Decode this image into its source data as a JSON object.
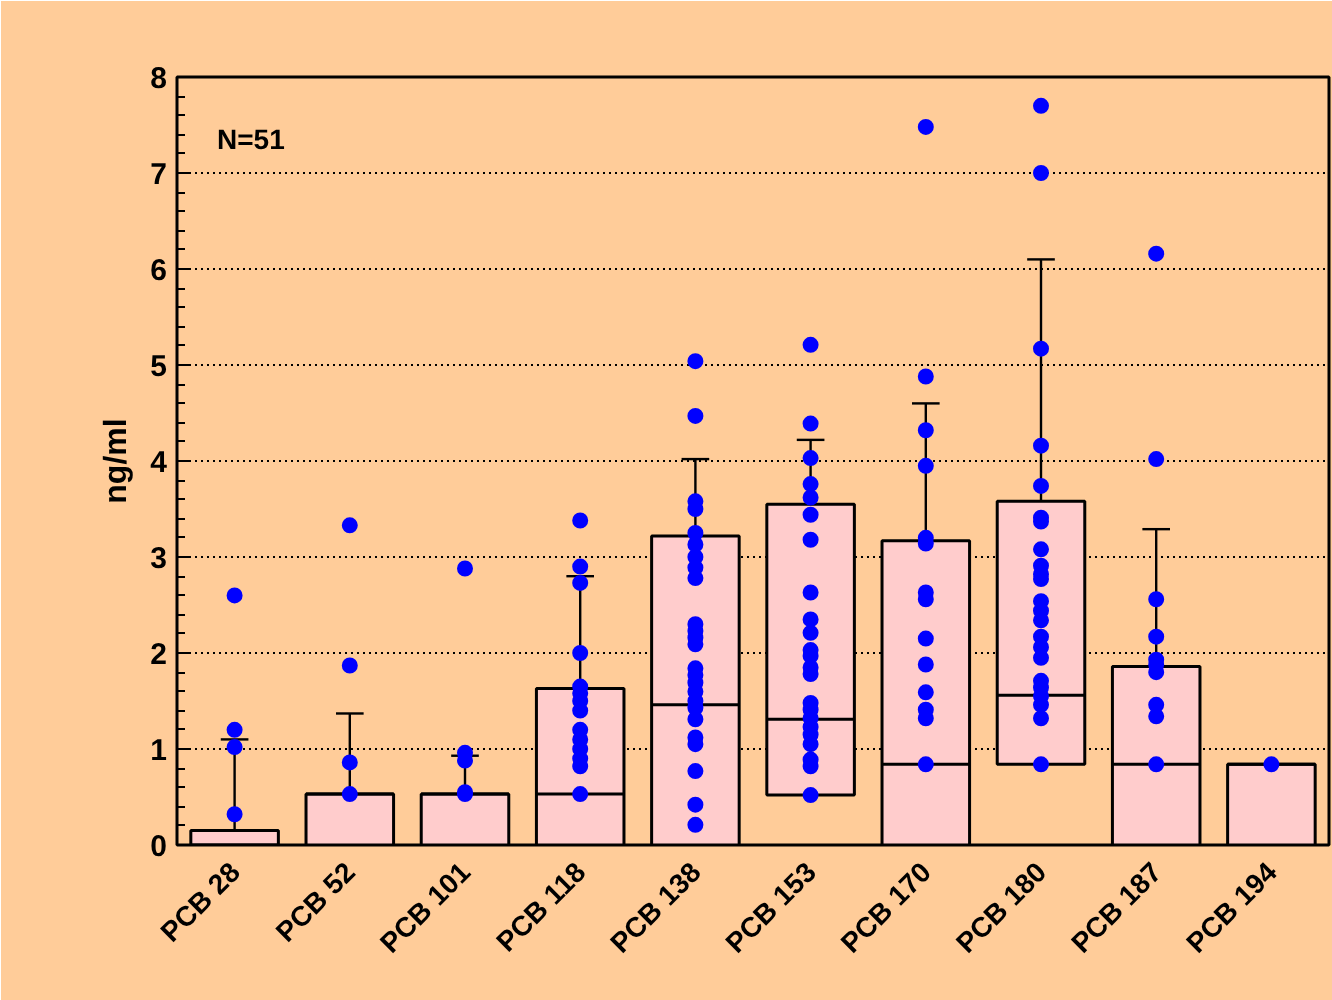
{
  "chart_data": {
    "type": "box",
    "categories": [
      "PCB 28",
      "PCB 52",
      "PCB 101",
      "PCB 118",
      "PCB 138",
      "PCB 153",
      "PCB 170",
      "PCB 180",
      "PCB 187",
      "PCB 194"
    ],
    "ylabel": "ng/ml",
    "annotations": [
      "N=51"
    ],
    "ylim": [
      0,
      8
    ],
    "yticks": [
      0,
      1,
      2,
      3,
      4,
      5,
      6,
      7,
      8
    ],
    "grid": "y",
    "series": [
      {
        "color": "#ffcccc",
        "boxes": [
          {
            "low": 0,
            "q1": 0,
            "median": 0,
            "q3": 0.15,
            "high": 1.1
          },
          {
            "low": 0,
            "q1": 0,
            "median": 0.53,
            "q3": 0.53,
            "high": 1.37
          },
          {
            "low": 0,
            "q1": 0,
            "median": 0.53,
            "q3": 0.53,
            "high": 0.93
          },
          {
            "low": 0,
            "q1": 0,
            "median": 0.53,
            "q3": 1.63,
            "high": 2.8
          },
          {
            "low": 0,
            "q1": 0,
            "median": 1.46,
            "q3": 3.22,
            "high": 4.02
          },
          {
            "low": 0.52,
            "q1": 0.52,
            "median": 1.31,
            "q3": 3.55,
            "high": 4.22
          },
          {
            "low": 0,
            "q1": 0,
            "median": 0.84,
            "q3": 3.17,
            "high": 4.6
          },
          {
            "low": 0.84,
            "q1": 0.84,
            "median": 1.56,
            "q3": 3.58,
            "high": 6.1
          },
          {
            "low": 0,
            "q1": 0,
            "median": 0.84,
            "q3": 1.86,
            "high": 3.29
          },
          {
            "low": 0,
            "q1": 0,
            "median": 0.84,
            "q3": 0.84,
            "high": 0.84
          }
        ]
      },
      {
        "type": "scatter",
        "color": "#0000ff",
        "marker": "circle",
        "x": [
          "PCB 28",
          "PCB 28",
          "PCB 28",
          "PCB 28",
          "PCB 52",
          "PCB 52",
          "PCB 52",
          "PCB 52",
          "PCB 101",
          "PCB 101",
          "PCB 101",
          "PCB 101",
          "PCB 101",
          "PCB 118",
          "PCB 118",
          "PCB 118",
          "PCB 118",
          "PCB 118",
          "PCB 118",
          "PCB 118",
          "PCB 118",
          "PCB 118",
          "PCB 118",
          "PCB 118",
          "PCB 118",
          "PCB 118",
          "PCB 118",
          "PCB 138",
          "PCB 138",
          "PCB 138",
          "PCB 138",
          "PCB 138",
          "PCB 138",
          "PCB 138",
          "PCB 138",
          "PCB 138",
          "PCB 138",
          "PCB 138",
          "PCB 138",
          "PCB 138",
          "PCB 138",
          "PCB 138",
          "PCB 138",
          "PCB 138",
          "PCB 138",
          "PCB 138",
          "PCB 138",
          "PCB 138",
          "PCB 138",
          "PCB 138",
          "PCB 138",
          "PCB 138",
          "PCB 153",
          "PCB 153",
          "PCB 153",
          "PCB 153",
          "PCB 153",
          "PCB 153",
          "PCB 153",
          "PCB 153",
          "PCB 153",
          "PCB 153",
          "PCB 153",
          "PCB 153",
          "PCB 153",
          "PCB 153",
          "PCB 153",
          "PCB 153",
          "PCB 153",
          "PCB 153",
          "PCB 153",
          "PCB 153",
          "PCB 153",
          "PCB 153",
          "PCB 153",
          "PCB 170",
          "PCB 170",
          "PCB 170",
          "PCB 170",
          "PCB 170",
          "PCB 170",
          "PCB 170",
          "PCB 170",
          "PCB 170",
          "PCB 170",
          "PCB 170",
          "PCB 170",
          "PCB 170",
          "PCB 170",
          "PCB 180",
          "PCB 180",
          "PCB 180",
          "PCB 180",
          "PCB 180",
          "PCB 180",
          "PCB 180",
          "PCB 180",
          "PCB 180",
          "PCB 180",
          "PCB 180",
          "PCB 180",
          "PCB 180",
          "PCB 180",
          "PCB 180",
          "PCB 180",
          "PCB 180",
          "PCB 180",
          "PCB 180",
          "PCB 180",
          "PCB 180",
          "PCB 180",
          "PCB 180",
          "PCB 187",
          "PCB 187",
          "PCB 187",
          "PCB 187",
          "PCB 187",
          "PCB 187",
          "PCB 187",
          "PCB 187",
          "PCB 187",
          "PCB 187",
          "PCB 194"
        ],
        "values": [
          2.6,
          1.2,
          1.02,
          0.32,
          3.33,
          1.87,
          0.86,
          0.53,
          2.88,
          0.96,
          0.88,
          0.55,
          0.53,
          3.38,
          2.9,
          2.73,
          2.0,
          1.65,
          1.58,
          1.5,
          1.4,
          1.2,
          1.1,
          1.0,
          0.9,
          0.82,
          0.53,
          5.04,
          4.47,
          3.58,
          3.5,
          3.25,
          3.13,
          3.0,
          2.89,
          2.78,
          2.3,
          2.23,
          2.16,
          2.09,
          1.84,
          1.77,
          1.69,
          1.6,
          1.5,
          1.43,
          1.31,
          1.12,
          1.05,
          0.77,
          0.42,
          0.21,
          5.21,
          4.39,
          4.03,
          3.76,
          3.62,
          3.44,
          3.18,
          2.63,
          2.35,
          2.21,
          2.03,
          1.97,
          1.85,
          1.78,
          1.48,
          1.41,
          1.32,
          1.23,
          1.15,
          1.05,
          0.89,
          0.82,
          0.52,
          7.48,
          4.88,
          4.32,
          3.95,
          3.2,
          3.14,
          2.63,
          2.56,
          2.15,
          1.88,
          1.59,
          1.41,
          1.32,
          0.84,
          7.7,
          7.0,
          5.17,
          4.16,
          3.74,
          3.41,
          3.37,
          3.08,
          2.91,
          2.82,
          2.77,
          2.54,
          2.44,
          2.34,
          2.17,
          2.06,
          1.95,
          1.71,
          1.64,
          1.55,
          1.46,
          1.32,
          0.84,
          6.16,
          4.02,
          2.56,
          2.17,
          1.93,
          1.88,
          1.8,
          1.46,
          1.34,
          0.84,
          0.84
        ]
      }
    ]
  }
}
